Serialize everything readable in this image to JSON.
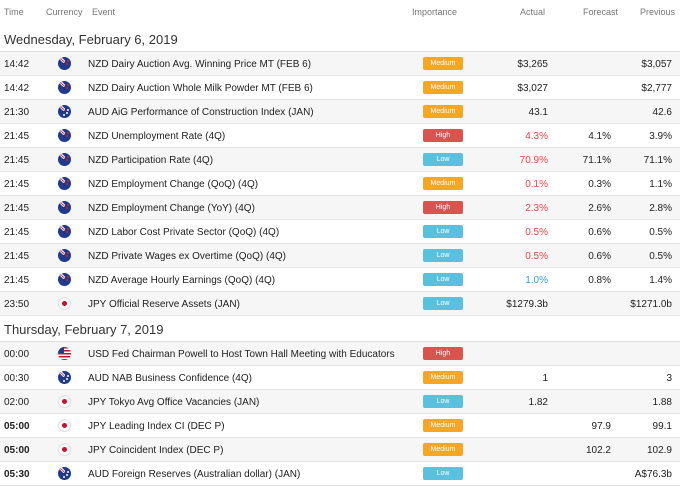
{
  "columns": {
    "time": "Time",
    "currency": "Currency",
    "event": "Event",
    "importance": "Importance",
    "actual": "Actual",
    "forecast": "Forecast",
    "previous": "Previous"
  },
  "colors": {
    "medium": "#f5a623",
    "high": "#d9534f",
    "low": "#5bc0de",
    "beat": "#e84a4a",
    "miss": "#3a9ad9"
  },
  "days": [
    {
      "label": "Wednesday, February 6, 2019",
      "rows": [
        {
          "time": "14:42",
          "currency": "NZD",
          "flag": "nz",
          "event": "NZD Dairy Auction Avg. Winning Price MT (FEB 6)",
          "importance": "Medium",
          "actual": "$3,265",
          "forecast": "",
          "previous": "$3,057"
        },
        {
          "time": "14:42",
          "currency": "NZD",
          "flag": "nz",
          "event": "NZD Dairy Auction Whole Milk Powder MT (FEB 6)",
          "importance": "Medium",
          "actual": "$3,027",
          "forecast": "",
          "previous": "$2,777"
        },
        {
          "time": "21:30",
          "currency": "AUD",
          "flag": "au",
          "event": "AUD AiG Performance of Construction Index (JAN)",
          "importance": "Medium",
          "actual": "43.1",
          "forecast": "",
          "previous": "42.6"
        },
        {
          "time": "21:45",
          "currency": "NZD",
          "flag": "nz",
          "event": "NZD Unemployment Rate (4Q)",
          "importance": "High",
          "actual": "4.3%",
          "actual_color": "red",
          "forecast": "4.1%",
          "previous": "3.9%"
        },
        {
          "time": "21:45",
          "currency": "NZD",
          "flag": "nz",
          "event": "NZD Participation Rate (4Q)",
          "importance": "Low",
          "actual": "70.9%",
          "actual_color": "red",
          "forecast": "71.1%",
          "previous": "71.1%"
        },
        {
          "time": "21:45",
          "currency": "NZD",
          "flag": "nz",
          "event": "NZD Employment Change (QoQ) (4Q)",
          "importance": "Medium",
          "actual": "0.1%",
          "actual_color": "red",
          "forecast": "0.3%",
          "previous": "1.1%"
        },
        {
          "time": "21:45",
          "currency": "NZD",
          "flag": "nz",
          "event": "NZD Employment Change (YoY) (4Q)",
          "importance": "High",
          "actual": "2.3%",
          "actual_color": "red",
          "forecast": "2.6%",
          "previous": "2.8%"
        },
        {
          "time": "21:45",
          "currency": "NZD",
          "flag": "nz",
          "event": "NZD Labor Cost Private Sector (QoQ) (4Q)",
          "importance": "Low",
          "actual": "0.5%",
          "actual_color": "red",
          "forecast": "0.6%",
          "previous": "0.5%"
        },
        {
          "time": "21:45",
          "currency": "NZD",
          "flag": "nz",
          "event": "NZD Private Wages ex Overtime (QoQ) (4Q)",
          "importance": "Low",
          "actual": "0.5%",
          "actual_color": "red",
          "forecast": "0.6%",
          "previous": "0.5%"
        },
        {
          "time": "21:45",
          "currency": "NZD",
          "flag": "nz",
          "event": "NZD Average Hourly Earnings (QoQ) (4Q)",
          "importance": "Low",
          "actual": "1.0%",
          "actual_color": "blue",
          "forecast": "0.8%",
          "previous": "1.4%"
        },
        {
          "time": "23:50",
          "currency": "JPY",
          "flag": "jp",
          "event": "JPY Official Reserve Assets (JAN)",
          "importance": "Low",
          "actual": "$1279.3b",
          "forecast": "",
          "previous": "$1271.0b"
        }
      ]
    },
    {
      "label": "Thursday, February 7, 2019",
      "rows": [
        {
          "time": "00:00",
          "currency": "USD",
          "flag": "us",
          "event": "USD Fed Chairman Powell to Host Town Hall Meeting with Educators",
          "importance": "High",
          "actual": "",
          "forecast": "",
          "previous": ""
        },
        {
          "time": "00:30",
          "currency": "AUD",
          "flag": "au",
          "event": "AUD NAB Business Confidence (4Q)",
          "importance": "Medium",
          "actual": "1",
          "forecast": "",
          "previous": "3"
        },
        {
          "time": "02:00",
          "currency": "JPY",
          "flag": "jp",
          "event": "JPY Tokyo Avg Office Vacancies (JAN)",
          "importance": "Low",
          "actual": "1.82",
          "forecast": "",
          "previous": "1.88"
        },
        {
          "time": "05:00",
          "bold": true,
          "currency": "JPY",
          "flag": "jp",
          "event": "JPY Leading Index CI (DEC P)",
          "importance": "Medium",
          "actual": "",
          "forecast": "97.9",
          "previous": "99.1"
        },
        {
          "time": "05:00",
          "bold": true,
          "currency": "JPY",
          "flag": "jp",
          "event": "JPY Coincident Index (DEC P)",
          "importance": "Medium",
          "actual": "",
          "forecast": "102.2",
          "previous": "102.9"
        },
        {
          "time": "05:30",
          "bold": true,
          "currency": "AUD",
          "flag": "au",
          "event": "AUD Foreign Reserves (Australian dollar) (JAN)",
          "importance": "Low",
          "actual": "",
          "forecast": "",
          "previous": "A$76.3b"
        }
      ]
    }
  ]
}
